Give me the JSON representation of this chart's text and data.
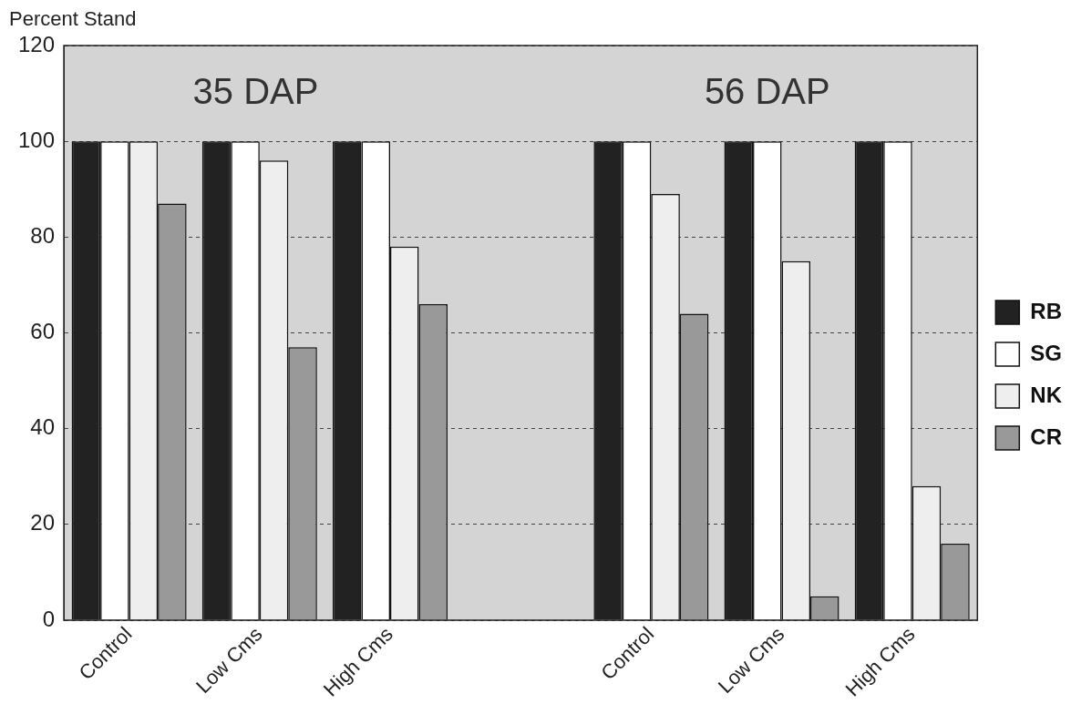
{
  "chart_data": {
    "type": "bar",
    "ylabel": "Percent Stand",
    "categories": [
      "Control",
      "Low Cms",
      "High Cms",
      null,
      "Control",
      "Low Cms",
      "High Cms"
    ],
    "series": [
      {
        "name": "RB",
        "color": "#222222",
        "values": [
          100,
          100,
          100,
          null,
          100,
          100,
          100
        ]
      },
      {
        "name": "SG",
        "color": "#ffffff",
        "values": [
          100,
          100,
          100,
          null,
          100,
          100,
          100
        ]
      },
      {
        "name": "NK",
        "color": "#eeeeee",
        "values": [
          100,
          96,
          78,
          null,
          89,
          75,
          28
        ]
      },
      {
        "name": "CR",
        "color": "#999999",
        "values": [
          87,
          57,
          66,
          null,
          64,
          5,
          16
        ]
      }
    ],
    "ylim": [
      0,
      120
    ],
    "yticks": [
      0,
      20,
      40,
      60,
      80,
      100,
      120
    ],
    "grid": "y",
    "legend": "right",
    "annotations": [
      "35 DAP",
      "56 DAP"
    ]
  }
}
